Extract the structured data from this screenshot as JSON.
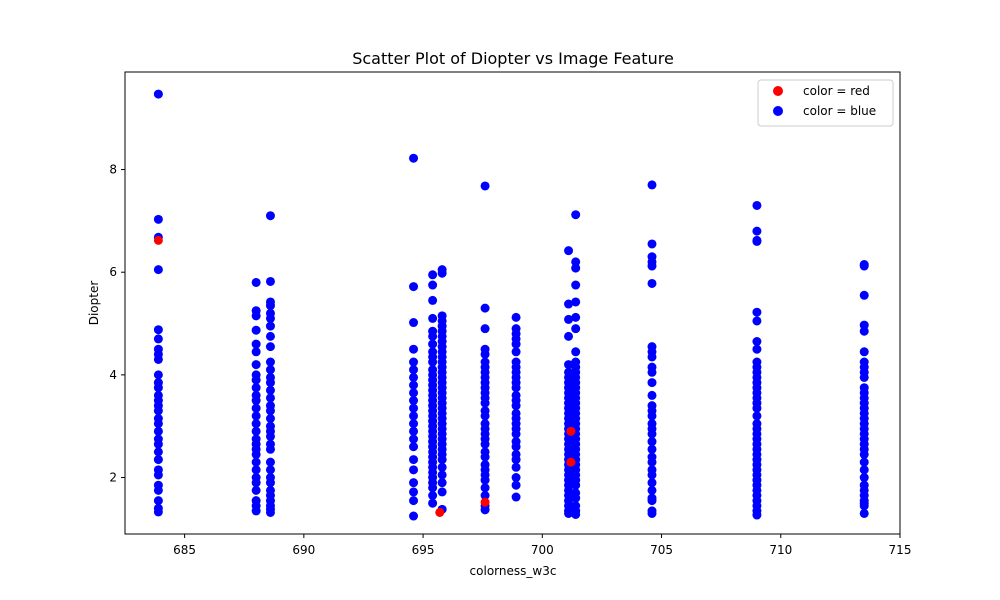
{
  "chart_data": {
    "type": "scatter",
    "title": "Scatter Plot of Diopter vs Image Feature",
    "xlabel": "colorness_w3c",
    "ylabel": "Diopter",
    "xlim": [
      682.5,
      715
    ],
    "ylim": [
      0.9,
      9.9
    ],
    "xticks": [
      685,
      690,
      695,
      700,
      705,
      710,
      715
    ],
    "yticks": [
      2,
      4,
      6,
      8
    ],
    "grid": false,
    "legend_position": "top-right",
    "series": [
      {
        "name": "color = red",
        "color": "#ff0000",
        "x": [
          683.9,
          695.7,
          697.6,
          701.2,
          701.2
        ],
        "y": [
          6.62,
          1.32,
          1.52,
          2.3,
          2.9
        ]
      },
      {
        "name": "color = blue",
        "color": "#0000ff",
        "x": [
          683.9,
          683.9,
          683.9,
          683.9,
          683.9,
          683.9,
          683.9,
          683.9,
          683.9,
          683.9,
          683.9,
          683.9,
          683.9,
          683.9,
          683.9,
          683.9,
          683.9,
          683.9,
          683.9,
          683.9,
          683.9,
          683.9,
          683.9,
          683.9,
          683.9,
          683.9,
          683.9,
          683.9,
          683.9,
          683.9,
          688.0,
          688.0,
          688.0,
          688.0,
          688.0,
          688.0,
          688.0,
          688.0,
          688.0,
          688.0,
          688.0,
          688.0,
          688.0,
          688.0,
          688.0,
          688.0,
          688.0,
          688.0,
          688.0,
          688.0,
          688.0,
          688.0,
          688.0,
          688.0,
          688.0,
          688.0,
          688.0,
          688.0,
          688.6,
          688.6,
          688.6,
          688.6,
          688.6,
          688.6,
          688.6,
          688.6,
          688.6,
          688.6,
          688.6,
          688.6,
          688.6,
          688.6,
          688.6,
          688.6,
          688.6,
          688.6,
          688.6,
          688.6,
          688.6,
          688.6,
          688.6,
          688.6,
          688.6,
          688.6,
          688.6,
          688.6,
          688.6,
          688.6,
          688.6,
          688.6,
          688.6,
          694.6,
          694.6,
          694.6,
          694.6,
          694.6,
          694.6,
          694.6,
          694.6,
          694.6,
          694.6,
          694.6,
          694.6,
          694.6,
          694.6,
          694.6,
          694.6,
          694.6,
          694.6,
          694.6,
          694.6,
          694.6,
          694.6,
          695.4,
          695.4,
          695.4,
          695.4,
          695.4,
          695.4,
          695.4,
          695.4,
          695.4,
          695.4,
          695.4,
          695.4,
          695.4,
          695.4,
          695.4,
          695.4,
          695.4,
          695.4,
          695.4,
          695.4,
          695.4,
          695.4,
          695.4,
          695.4,
          695.4,
          695.4,
          695.4,
          695.4,
          695.4,
          695.4,
          695.4,
          695.4,
          695.4,
          695.4,
          695.4,
          695.4,
          695.8,
          695.8,
          695.8,
          695.8,
          695.8,
          695.8,
          695.8,
          695.8,
          695.8,
          695.8,
          695.8,
          695.8,
          695.8,
          695.8,
          695.8,
          695.8,
          695.8,
          695.8,
          695.8,
          695.8,
          695.8,
          695.8,
          695.8,
          695.8,
          695.8,
          695.8,
          695.8,
          695.8,
          695.8,
          695.8,
          695.8,
          695.8,
          695.8,
          695.8,
          695.8,
          695.8,
          697.6,
          697.6,
          697.6,
          697.6,
          697.6,
          697.6,
          697.6,
          697.6,
          697.6,
          697.6,
          697.6,
          697.6,
          697.6,
          697.6,
          697.6,
          697.6,
          697.6,
          697.6,
          697.6,
          697.6,
          697.6,
          697.6,
          697.6,
          697.6,
          697.6,
          697.6,
          697.6,
          697.6,
          697.6,
          697.6,
          697.6,
          698.9,
          698.9,
          698.9,
          698.9,
          698.9,
          698.9,
          698.9,
          698.9,
          698.9,
          698.9,
          698.9,
          698.9,
          698.9,
          698.9,
          698.9,
          698.9,
          698.9,
          698.9,
          698.9,
          698.9,
          698.9,
          698.9,
          698.9,
          698.9,
          698.9,
          698.9,
          698.9,
          698.9,
          701.1,
          701.1,
          701.1,
          701.1,
          701.1,
          701.1,
          701.1,
          701.1,
          701.1,
          701.1,
          701.1,
          701.1,
          701.1,
          701.1,
          701.1,
          701.1,
          701.1,
          701.1,
          701.1,
          701.1,
          701.1,
          701.1,
          701.1,
          701.1,
          701.1,
          701.1,
          701.1,
          701.1,
          701.1,
          701.1,
          701.1,
          701.1,
          701.1,
          701.1,
          701.4,
          701.4,
          701.4,
          701.4,
          701.4,
          701.4,
          701.4,
          701.4,
          701.4,
          701.4,
          701.4,
          701.4,
          701.4,
          701.4,
          701.4,
          701.4,
          701.4,
          701.4,
          701.4,
          701.4,
          701.4,
          701.4,
          701.4,
          701.4,
          701.4,
          701.4,
          701.4,
          701.4,
          701.4,
          701.4,
          701.4,
          701.4,
          701.4,
          701.4,
          701.4,
          701.4,
          701.4,
          701.4,
          704.6,
          704.6,
          704.6,
          704.6,
          704.6,
          704.6,
          704.6,
          704.6,
          704.6,
          704.6,
          704.6,
          704.6,
          704.6,
          704.6,
          704.6,
          704.6,
          704.6,
          704.6,
          704.6,
          704.6,
          704.6,
          704.6,
          704.6,
          704.6,
          704.6,
          704.6,
          704.6,
          704.6,
          704.6,
          704.6,
          704.6,
          709.0,
          709.0,
          709.0,
          709.0,
          709.0,
          709.0,
          709.0,
          709.0,
          709.0,
          709.0,
          709.0,
          709.0,
          709.0,
          709.0,
          709.0,
          709.0,
          709.0,
          709.0,
          709.0,
          709.0,
          709.0,
          709.0,
          709.0,
          709.0,
          709.0,
          709.0,
          709.0,
          709.0,
          709.0,
          709.0,
          709.0,
          709.0,
          709.0,
          709.0,
          709.0,
          709.0,
          709.0,
          709.0,
          713.5,
          713.5,
          713.5,
          713.5,
          713.5,
          713.5,
          713.5,
          713.5,
          713.5,
          713.5,
          713.5,
          713.5,
          713.5,
          713.5,
          713.5,
          713.5,
          713.5,
          713.5,
          713.5,
          713.5,
          713.5,
          713.5,
          713.5,
          713.5,
          713.5,
          713.5,
          713.5,
          713.5,
          713.5,
          713.5,
          713.5,
          713.5,
          713.5,
          713.5
        ],
        "y": [
          9.47,
          7.03,
          6.68,
          6.05,
          4.88,
          4.7,
          4.5,
          4.4,
          4.3,
          4.0,
          3.85,
          3.75,
          3.6,
          3.5,
          3.4,
          3.3,
          3.15,
          3.05,
          2.9,
          2.75,
          2.65,
          2.5,
          2.35,
          2.15,
          2.05,
          1.85,
          1.75,
          1.55,
          1.4,
          1.33,
          5.8,
          5.25,
          5.15,
          4.87,
          4.6,
          4.45,
          4.2,
          4.0,
          3.9,
          3.75,
          3.6,
          3.5,
          3.35,
          3.2,
          3.05,
          2.9,
          2.75,
          2.65,
          2.55,
          2.45,
          2.3,
          2.15,
          2.0,
          1.9,
          1.75,
          1.55,
          1.45,
          1.35,
          7.1,
          5.82,
          5.42,
          5.35,
          5.2,
          5.1,
          4.95,
          4.75,
          4.55,
          4.25,
          4.1,
          3.95,
          3.85,
          3.7,
          3.55,
          3.4,
          3.3,
          3.15,
          3.0,
          2.9,
          2.8,
          2.65,
          2.55,
          2.3,
          2.15,
          2.0,
          1.9,
          1.75,
          1.65,
          1.55,
          1.45,
          1.38,
          1.32,
          8.22,
          5.72,
          5.02,
          4.5,
          4.25,
          4.1,
          3.95,
          3.8,
          3.65,
          3.5,
          3.35,
          3.2,
          3.05,
          2.9,
          2.75,
          2.6,
          2.35,
          2.15,
          1.9,
          1.72,
          1.55,
          1.25,
          5.95,
          5.75,
          5.45,
          5.1,
          4.85,
          4.75,
          4.6,
          4.45,
          4.35,
          4.25,
          4.1,
          4.0,
          3.9,
          3.8,
          3.7,
          3.6,
          3.5,
          3.4,
          3.3,
          3.2,
          3.1,
          3.0,
          2.9,
          2.8,
          2.7,
          2.6,
          2.5,
          2.4,
          2.3,
          2.2,
          2.1,
          2.0,
          1.9,
          1.8,
          1.65,
          1.5,
          6.05,
          5.98,
          5.15,
          5.05,
          4.95,
          4.85,
          4.75,
          4.65,
          4.55,
          4.45,
          4.35,
          4.25,
          4.15,
          4.05,
          3.95,
          3.85,
          3.75,
          3.65,
          3.55,
          3.45,
          3.35,
          3.25,
          3.15,
          3.05,
          2.95,
          2.85,
          2.75,
          2.65,
          2.55,
          2.45,
          2.35,
          2.2,
          2.05,
          1.9,
          1.72,
          1.38,
          7.68,
          5.3,
          4.9,
          4.5,
          4.4,
          4.25,
          4.15,
          4.05,
          3.95,
          3.85,
          3.75,
          3.65,
          3.55,
          3.45,
          3.3,
          3.2,
          3.05,
          2.95,
          2.85,
          2.75,
          2.65,
          2.5,
          2.4,
          2.25,
          2.15,
          2.05,
          1.95,
          1.8,
          1.65,
          1.45,
          1.37,
          5.12,
          4.9,
          4.8,
          4.7,
          4.6,
          4.45,
          4.25,
          4.15,
          4.05,
          3.95,
          3.85,
          3.75,
          3.6,
          3.5,
          3.4,
          3.25,
          3.15,
          3.05,
          2.95,
          2.85,
          2.7,
          2.6,
          2.45,
          2.35,
          2.2,
          2.0,
          1.85,
          1.62,
          6.42,
          5.38,
          5.08,
          4.75,
          4.2,
          4.05,
          3.95,
          3.85,
          3.75,
          3.65,
          3.55,
          3.45,
          3.35,
          3.25,
          3.15,
          3.05,
          2.95,
          2.85,
          2.75,
          2.65,
          2.55,
          2.45,
          2.35,
          2.25,
          2.15,
          2.05,
          1.95,
          1.85,
          1.75,
          1.65,
          1.55,
          1.45,
          1.35,
          1.3,
          7.12,
          6.2,
          6.08,
          5.75,
          5.42,
          5.12,
          4.9,
          4.45,
          4.25,
          4.15,
          4.05,
          3.95,
          3.85,
          3.75,
          3.65,
          3.55,
          3.45,
          3.35,
          3.25,
          3.15,
          3.05,
          2.95,
          2.85,
          2.75,
          2.65,
          2.55,
          2.45,
          2.35,
          2.25,
          2.15,
          2.05,
          1.95,
          1.85,
          1.7,
          1.6,
          1.45,
          1.35,
          1.28,
          7.7,
          6.55,
          6.3,
          6.2,
          6.12,
          5.78,
          4.55,
          4.45,
          4.35,
          4.15,
          4.05,
          3.85,
          3.6,
          3.4,
          3.3,
          3.2,
          3.05,
          2.95,
          2.85,
          2.7,
          2.55,
          2.4,
          2.3,
          2.15,
          2.05,
          1.9,
          1.75,
          1.6,
          1.55,
          1.35,
          1.3,
          7.3,
          6.8,
          6.62,
          6.6,
          5.22,
          5.05,
          4.65,
          4.5,
          4.25,
          4.15,
          4.05,
          3.95,
          3.85,
          3.75,
          3.65,
          3.55,
          3.45,
          3.35,
          3.2,
          3.05,
          2.95,
          2.85,
          2.75,
          2.65,
          2.55,
          2.45,
          2.35,
          2.25,
          2.15,
          2.05,
          1.95,
          1.85,
          1.75,
          1.65,
          1.55,
          1.45,
          1.35,
          1.27,
          6.15,
          6.12,
          5.55,
          4.97,
          4.85,
          4.45,
          4.25,
          4.15,
          4.05,
          3.95,
          3.75,
          3.65,
          3.55,
          3.45,
          3.35,
          3.25,
          3.15,
          3.05,
          2.95,
          2.85,
          2.75,
          2.65,
          2.55,
          2.45,
          2.3,
          2.15,
          2.0,
          1.85,
          1.75,
          1.65,
          1.55,
          1.5,
          1.45,
          1.3
        ]
      }
    ]
  }
}
